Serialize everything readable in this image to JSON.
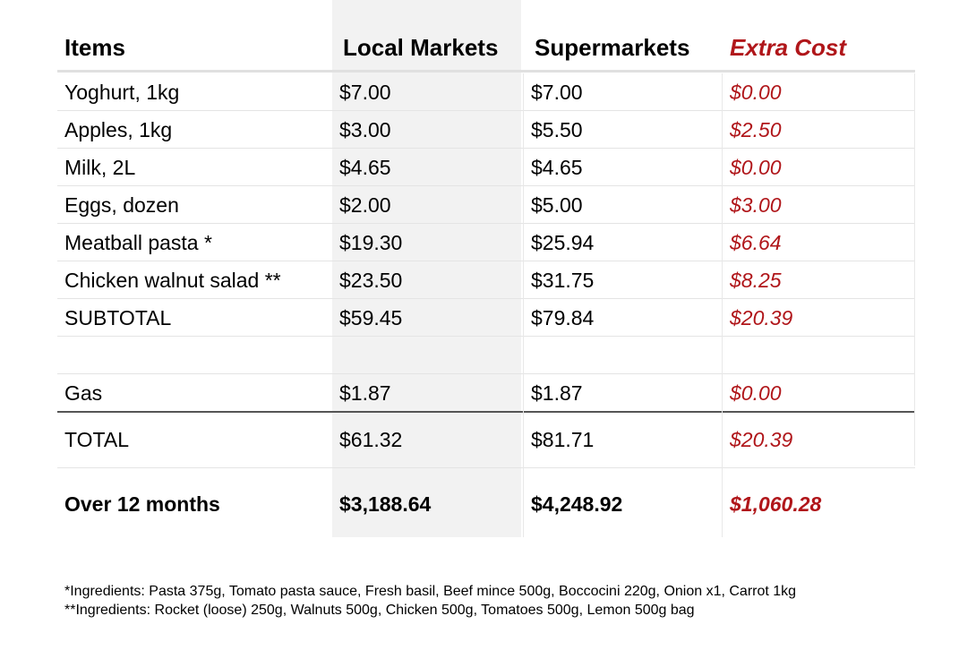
{
  "headers": [
    "Items",
    "Local Markets",
    "Supermarkets",
    "Extra Cost"
  ],
  "rows": [
    [
      "Yoghurt, 1kg",
      "$7.00",
      "$7.00",
      "$0.00"
    ],
    [
      "Apples, 1kg",
      "$3.00",
      "$5.50",
      "$2.50"
    ],
    [
      "Milk, 2L",
      "$4.65",
      "$4.65",
      "$0.00"
    ],
    [
      "Eggs, dozen",
      "$2.00",
      "$5.00",
      "$3.00"
    ],
    [
      "Meatball pasta *",
      "$19.30",
      "$25.94",
      "$6.64"
    ],
    [
      "Chicken walnut salad **",
      "$23.50",
      "$31.75",
      "$8.25"
    ],
    [
      "SUBTOTAL",
      "$59.45",
      "$79.84",
      "$20.39"
    ],
    [
      "",
      "",
      "",
      ""
    ],
    [
      "Gas",
      "$1.87",
      "$1.87",
      "$0.00"
    ],
    [
      "TOTAL",
      "$61.32",
      "$81.71",
      "$20.39"
    ],
    [
      "Over 12 months",
      "$3,188.64",
      "$4,248.92",
      "$1,060.28"
    ]
  ],
  "footnotes": [
    "*Ingredients: Pasta 375g, Tomato pasta sauce, Fresh basil, Beef mince 500g, Boccocini 220g, Onion x1, Carrot 1kg",
    "**Ingredients: Rocket (loose) 250g, Walnuts 500g, Chicken 500g, Tomatoes 500g, Lemon 500g bag"
  ]
}
